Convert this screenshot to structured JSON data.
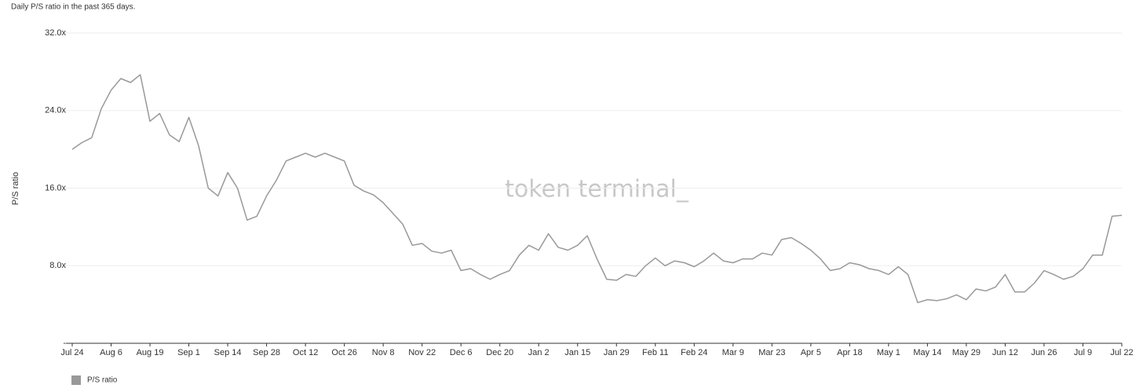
{
  "chart_data": {
    "type": "line",
    "title": "Daily P/S ratio in the past 365 days.",
    "y_label": "P/S ratio",
    "watermark": "token terminal_",
    "categories": [
      "Jul 24",
      null,
      null,
      null,
      "Aug 6",
      null,
      null,
      null,
      "Aug 19",
      null,
      null,
      null,
      "Sep 1",
      null,
      null,
      null,
      "Sep 14",
      null,
      null,
      null,
      "Sep 28",
      null,
      null,
      null,
      "Oct 12",
      null,
      null,
      null,
      "Oct 26",
      null,
      null,
      null,
      "Nov 8",
      null,
      null,
      null,
      "Nov 22",
      null,
      null,
      null,
      "Dec 6",
      null,
      null,
      null,
      "Dec 20",
      null,
      null,
      null,
      "Jan 2",
      null,
      null,
      null,
      "Jan 15",
      null,
      null,
      null,
      "Jan 29",
      null,
      null,
      null,
      "Feb 11",
      null,
      null,
      null,
      "Feb 24",
      null,
      null,
      null,
      "Mar 9",
      null,
      null,
      null,
      "Mar 23",
      null,
      null,
      null,
      "Apr 5",
      null,
      null,
      null,
      "Apr 18",
      null,
      null,
      null,
      "May 1",
      null,
      null,
      null,
      "May 14",
      null,
      null,
      null,
      "May 29",
      null,
      null,
      null,
      "Jun 12",
      null,
      null,
      null,
      "Jun 26",
      null,
      null,
      null,
      "Jul 9",
      null,
      null,
      null,
      "Jul 22"
    ],
    "series": [
      {
        "name": "P/S ratio",
        "color": "#999999",
        "values": [
          20.0,
          20.7,
          21.2,
          24.2,
          26.1,
          27.3,
          26.9,
          27.7,
          22.9,
          23.7,
          21.5,
          20.8,
          23.3,
          20.4,
          16.0,
          15.2,
          17.6,
          16.0,
          12.7,
          13.1,
          15.2,
          16.8,
          18.8,
          19.2,
          19.6,
          19.2,
          19.6,
          19.2,
          18.8,
          16.3,
          15.7,
          15.3,
          14.5,
          13.4,
          12.3,
          10.1,
          10.3,
          9.5,
          9.3,
          9.6,
          7.5,
          7.7,
          7.1,
          6.6,
          7.1,
          7.5,
          9.1,
          10.1,
          9.6,
          11.3,
          9.9,
          9.6,
          10.1,
          11.1,
          8.7,
          6.6,
          6.5,
          7.1,
          6.9,
          8.0,
          8.8,
          8.0,
          8.5,
          8.3,
          7.9,
          8.5,
          9.3,
          8.5,
          8.3,
          8.7,
          8.7,
          9.3,
          9.1,
          10.7,
          10.9,
          10.3,
          9.6,
          8.7,
          7.5,
          7.7,
          8.3,
          8.1,
          7.7,
          7.5,
          7.1,
          7.9,
          7.1,
          4.2,
          4.5,
          4.4,
          4.6,
          5.0,
          4.5,
          5.6,
          5.4,
          5.8,
          7.1,
          5.3,
          5.3,
          6.2,
          7.5,
          7.1,
          6.6,
          6.9,
          7.7,
          9.1,
          9.1,
          13.1,
          13.2
        ]
      }
    ],
    "ylim": [
      0,
      32
    ],
    "yticks": [
      {
        "value": 0,
        "label": "-"
      },
      {
        "value": 8,
        "label": "8.0x"
      },
      {
        "value": 16,
        "label": "16.0x"
      },
      {
        "value": 24,
        "label": "24.0x"
      },
      {
        "value": 32,
        "label": "32.0x"
      }
    ],
    "grid": true
  }
}
